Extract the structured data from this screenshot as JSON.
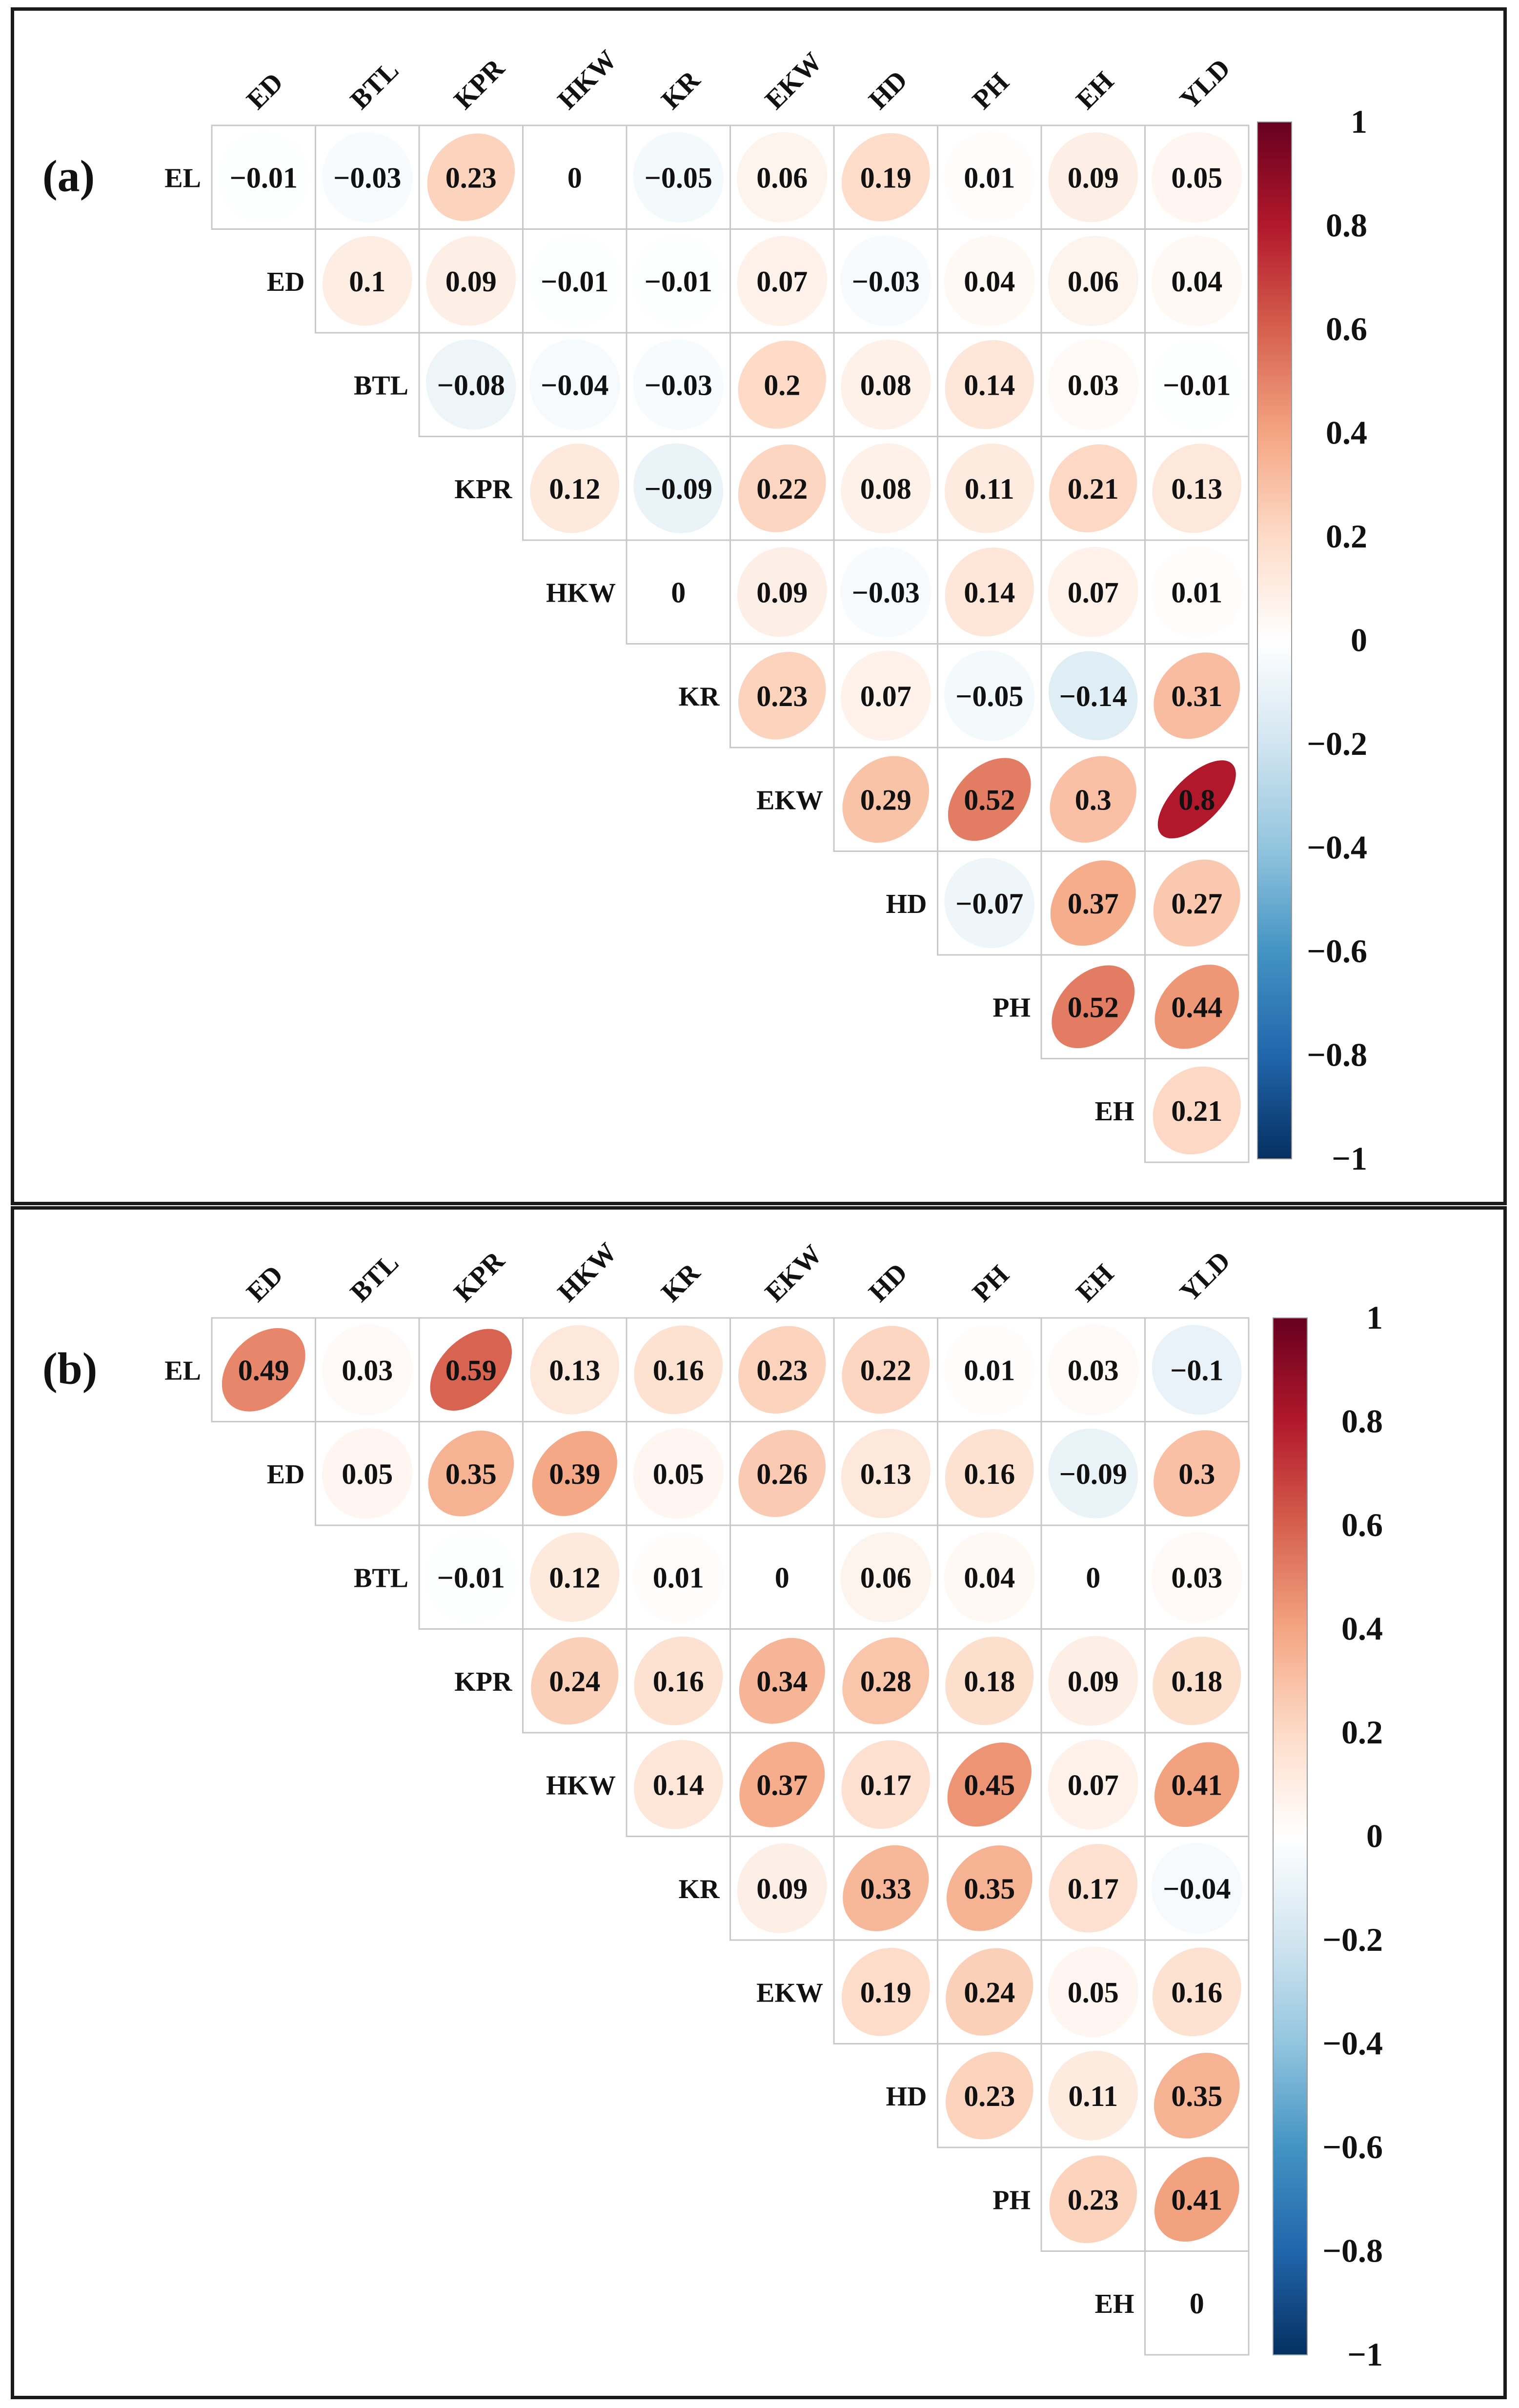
{
  "colorbar": {
    "ticks": [
      "1",
      "0.8",
      "0.6",
      "0.4",
      "0.2",
      "0",
      "−0.2",
      "−0.4",
      "−0.6",
      "−0.8",
      "−1"
    ],
    "colors": {
      "negative": "#053061",
      "mid": "#ffffff",
      "positive": "#67001f"
    }
  },
  "chart_data": [
    {
      "type": "heatmap",
      "panel_label": "(a)",
      "variables": [
        "EL",
        "ED",
        "BTL",
        "KPR",
        "HKW",
        "KR",
        "EKW",
        "HD",
        "PH",
        "EH",
        "YLD"
      ],
      "row_labels": [
        "EL",
        "ED",
        "BTL",
        "KPR",
        "HKW",
        "KR",
        "EKW",
        "HD",
        "PH",
        "EH"
      ],
      "col_labels": [
        "ED",
        "BTL",
        "KPR",
        "HKW",
        "KR",
        "EKW",
        "HD",
        "PH",
        "EH",
        "YLD"
      ],
      "values": [
        [
          -0.01,
          -0.03,
          0.23,
          0,
          -0.05,
          0.06,
          0.19,
          0.01,
          0.09,
          0.05
        ],
        [
          0.1,
          0.09,
          -0.01,
          -0.01,
          0.07,
          -0.03,
          0.04,
          0.06,
          0.04
        ],
        [
          -0.08,
          -0.04,
          -0.03,
          0.2,
          0.08,
          0.14,
          0.03,
          -0.01
        ],
        [
          0.12,
          -0.09,
          0.22,
          0.08,
          0.11,
          0.21,
          0.13
        ],
        [
          0,
          0.09,
          -0.03,
          0.14,
          0.07,
          0.01
        ],
        [
          0.23,
          0.07,
          -0.05,
          -0.14,
          0.31
        ],
        [
          0.29,
          0.52,
          0.3,
          0.8
        ],
        [
          -0.07,
          0.37,
          0.27
        ],
        [
          0.52,
          0.44
        ],
        [
          0.21
        ]
      ],
      "value_text": [
        [
          "−0.01",
          "−0.03",
          "0.23",
          "0",
          "−0.05",
          "0.06",
          "0.19",
          "0.01",
          "0.09",
          "0.05"
        ],
        [
          "0.1",
          "0.09",
          "−0.01",
          "−0.01",
          "0.07",
          "−0.03",
          "0.04",
          "0.06",
          "0.04"
        ],
        [
          "−0.08",
          "−0.04",
          "−0.03",
          "0.2",
          "0.08",
          "0.14",
          "0.03",
          "−0.01"
        ],
        [
          "0.12",
          "−0.09",
          "0.22",
          "0.08",
          "0.11",
          "0.21",
          "0.13"
        ],
        [
          "0",
          "0.09",
          "−0.03",
          "0.14",
          "0.07",
          "0.01"
        ],
        [
          "0.23",
          "0.07",
          "−0.05",
          "−0.14",
          "0.31"
        ],
        [
          "0.29",
          "0.52",
          "0.3",
          "0.8"
        ],
        [
          "−0.07",
          "0.37",
          "0.27"
        ],
        [
          "0.52",
          "0.44"
        ],
        [
          "0.21"
        ]
      ],
      "range": [
        -1,
        1
      ],
      "legend": "right"
    },
    {
      "type": "heatmap",
      "panel_label": "(b)",
      "variables": [
        "EL",
        "ED",
        "BTL",
        "KPR",
        "HKW",
        "KR",
        "EKW",
        "HD",
        "PH",
        "EH",
        "YLD"
      ],
      "row_labels": [
        "EL",
        "ED",
        "BTL",
        "KPR",
        "HKW",
        "KR",
        "EKW",
        "HD",
        "PH",
        "EH"
      ],
      "col_labels": [
        "ED",
        "BTL",
        "KPR",
        "HKW",
        "KR",
        "EKW",
        "HD",
        "PH",
        "EH",
        "YLD"
      ],
      "values": [
        [
          0.49,
          0.03,
          0.59,
          0.13,
          0.16,
          0.23,
          0.22,
          0.01,
          0.03,
          -0.1
        ],
        [
          0.05,
          0.35,
          0.39,
          0.05,
          0.26,
          0.13,
          0.16,
          -0.09,
          0.3
        ],
        [
          -0.01,
          0.12,
          0.01,
          0,
          0.06,
          0.04,
          0,
          0.03
        ],
        [
          0.24,
          0.16,
          0.34,
          0.28,
          0.18,
          0.09,
          0.18
        ],
        [
          0.14,
          0.37,
          0.17,
          0.45,
          0.07,
          0.41
        ],
        [
          0.09,
          0.33,
          0.35,
          0.17,
          -0.04
        ],
        [
          0.19,
          0.24,
          0.05,
          0.16
        ],
        [
          0.23,
          0.11,
          0.35
        ],
        [
          0.23,
          0.41
        ],
        [
          0
        ]
      ],
      "value_text": [
        [
          "0.49",
          "0.03",
          "0.59",
          "0.13",
          "0.16",
          "0.23",
          "0.22",
          "0.01",
          "0.03",
          "−0.1"
        ],
        [
          "0.05",
          "0.35",
          "0.39",
          "0.05",
          "0.26",
          "0.13",
          "0.16",
          "−0.09",
          "0.3"
        ],
        [
          "−0.01",
          "0.12",
          "0.01",
          "0",
          "0.06",
          "0.04",
          "0",
          "0.03"
        ],
        [
          "0.24",
          "0.16",
          "0.34",
          "0.28",
          "0.18",
          "0.09",
          "0.18"
        ],
        [
          "0.14",
          "0.37",
          "0.17",
          "0.45",
          "0.07",
          "0.41"
        ],
        [
          "0.09",
          "0.33",
          "0.35",
          "0.17",
          "−0.04"
        ],
        [
          "0.19",
          "0.24",
          "0.05",
          "0.16"
        ],
        [
          "0.23",
          "0.11",
          "0.35"
        ],
        [
          "0.23",
          "0.41"
        ],
        [
          "0"
        ]
      ],
      "range": [
        -1,
        1
      ],
      "legend": "right"
    }
  ]
}
